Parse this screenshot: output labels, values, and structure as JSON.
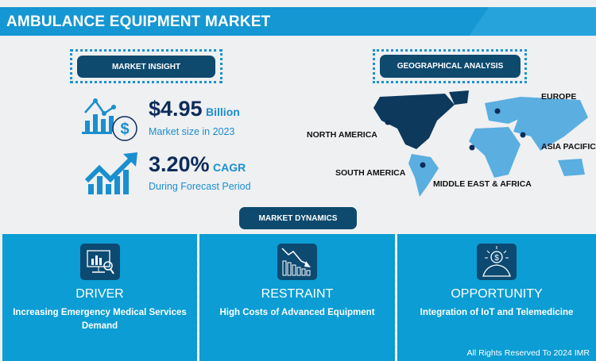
{
  "header": {
    "title": "AMBULANCE EQUIPMENT MARKET"
  },
  "insight": {
    "label": "MARKET INSIGHT",
    "market_size": {
      "value": "$4.95",
      "unit": "Billion",
      "caption": "Market size in 2023"
    },
    "cagr": {
      "value": "3.20%",
      "unit": "CAGR",
      "caption": "During Forecast Period"
    }
  },
  "geo": {
    "label": "GEOGRAPHICAL ANALYSIS",
    "regions": [
      "NORTH AMERICA",
      "EUROPE",
      "ASIA PACIFIC",
      "SOUTH AMERICA",
      "MIDDLE EAST & AFRICA"
    ],
    "highlighted_region": "NORTH AMERICA",
    "colors": {
      "highlight": "#0d3a5c",
      "other": "#5aaee0"
    }
  },
  "dynamics": {
    "label": "MARKET DYNAMICS",
    "panels": [
      {
        "title": "DRIVER",
        "desc": "Increasing Emergency Medical Services Demand",
        "icon": "monitor-analytics-icon"
      },
      {
        "title": "RESTRAINT",
        "desc": "High Costs of Advanced Equipment",
        "icon": "declining-chart-icon"
      },
      {
        "title": "OPPORTUNITY",
        "desc": "Integration of IoT and Telemedicine",
        "icon": "idea-dollar-icon"
      }
    ]
  },
  "footer": {
    "copyright": "All Rights Reserved To 2024 IMR"
  },
  "colors": {
    "header": "#1597d3",
    "panel": "#0b9dd4",
    "pill": "#0e4a6e",
    "accent": "#1a8fcf",
    "navy": "#0d2c5a"
  }
}
